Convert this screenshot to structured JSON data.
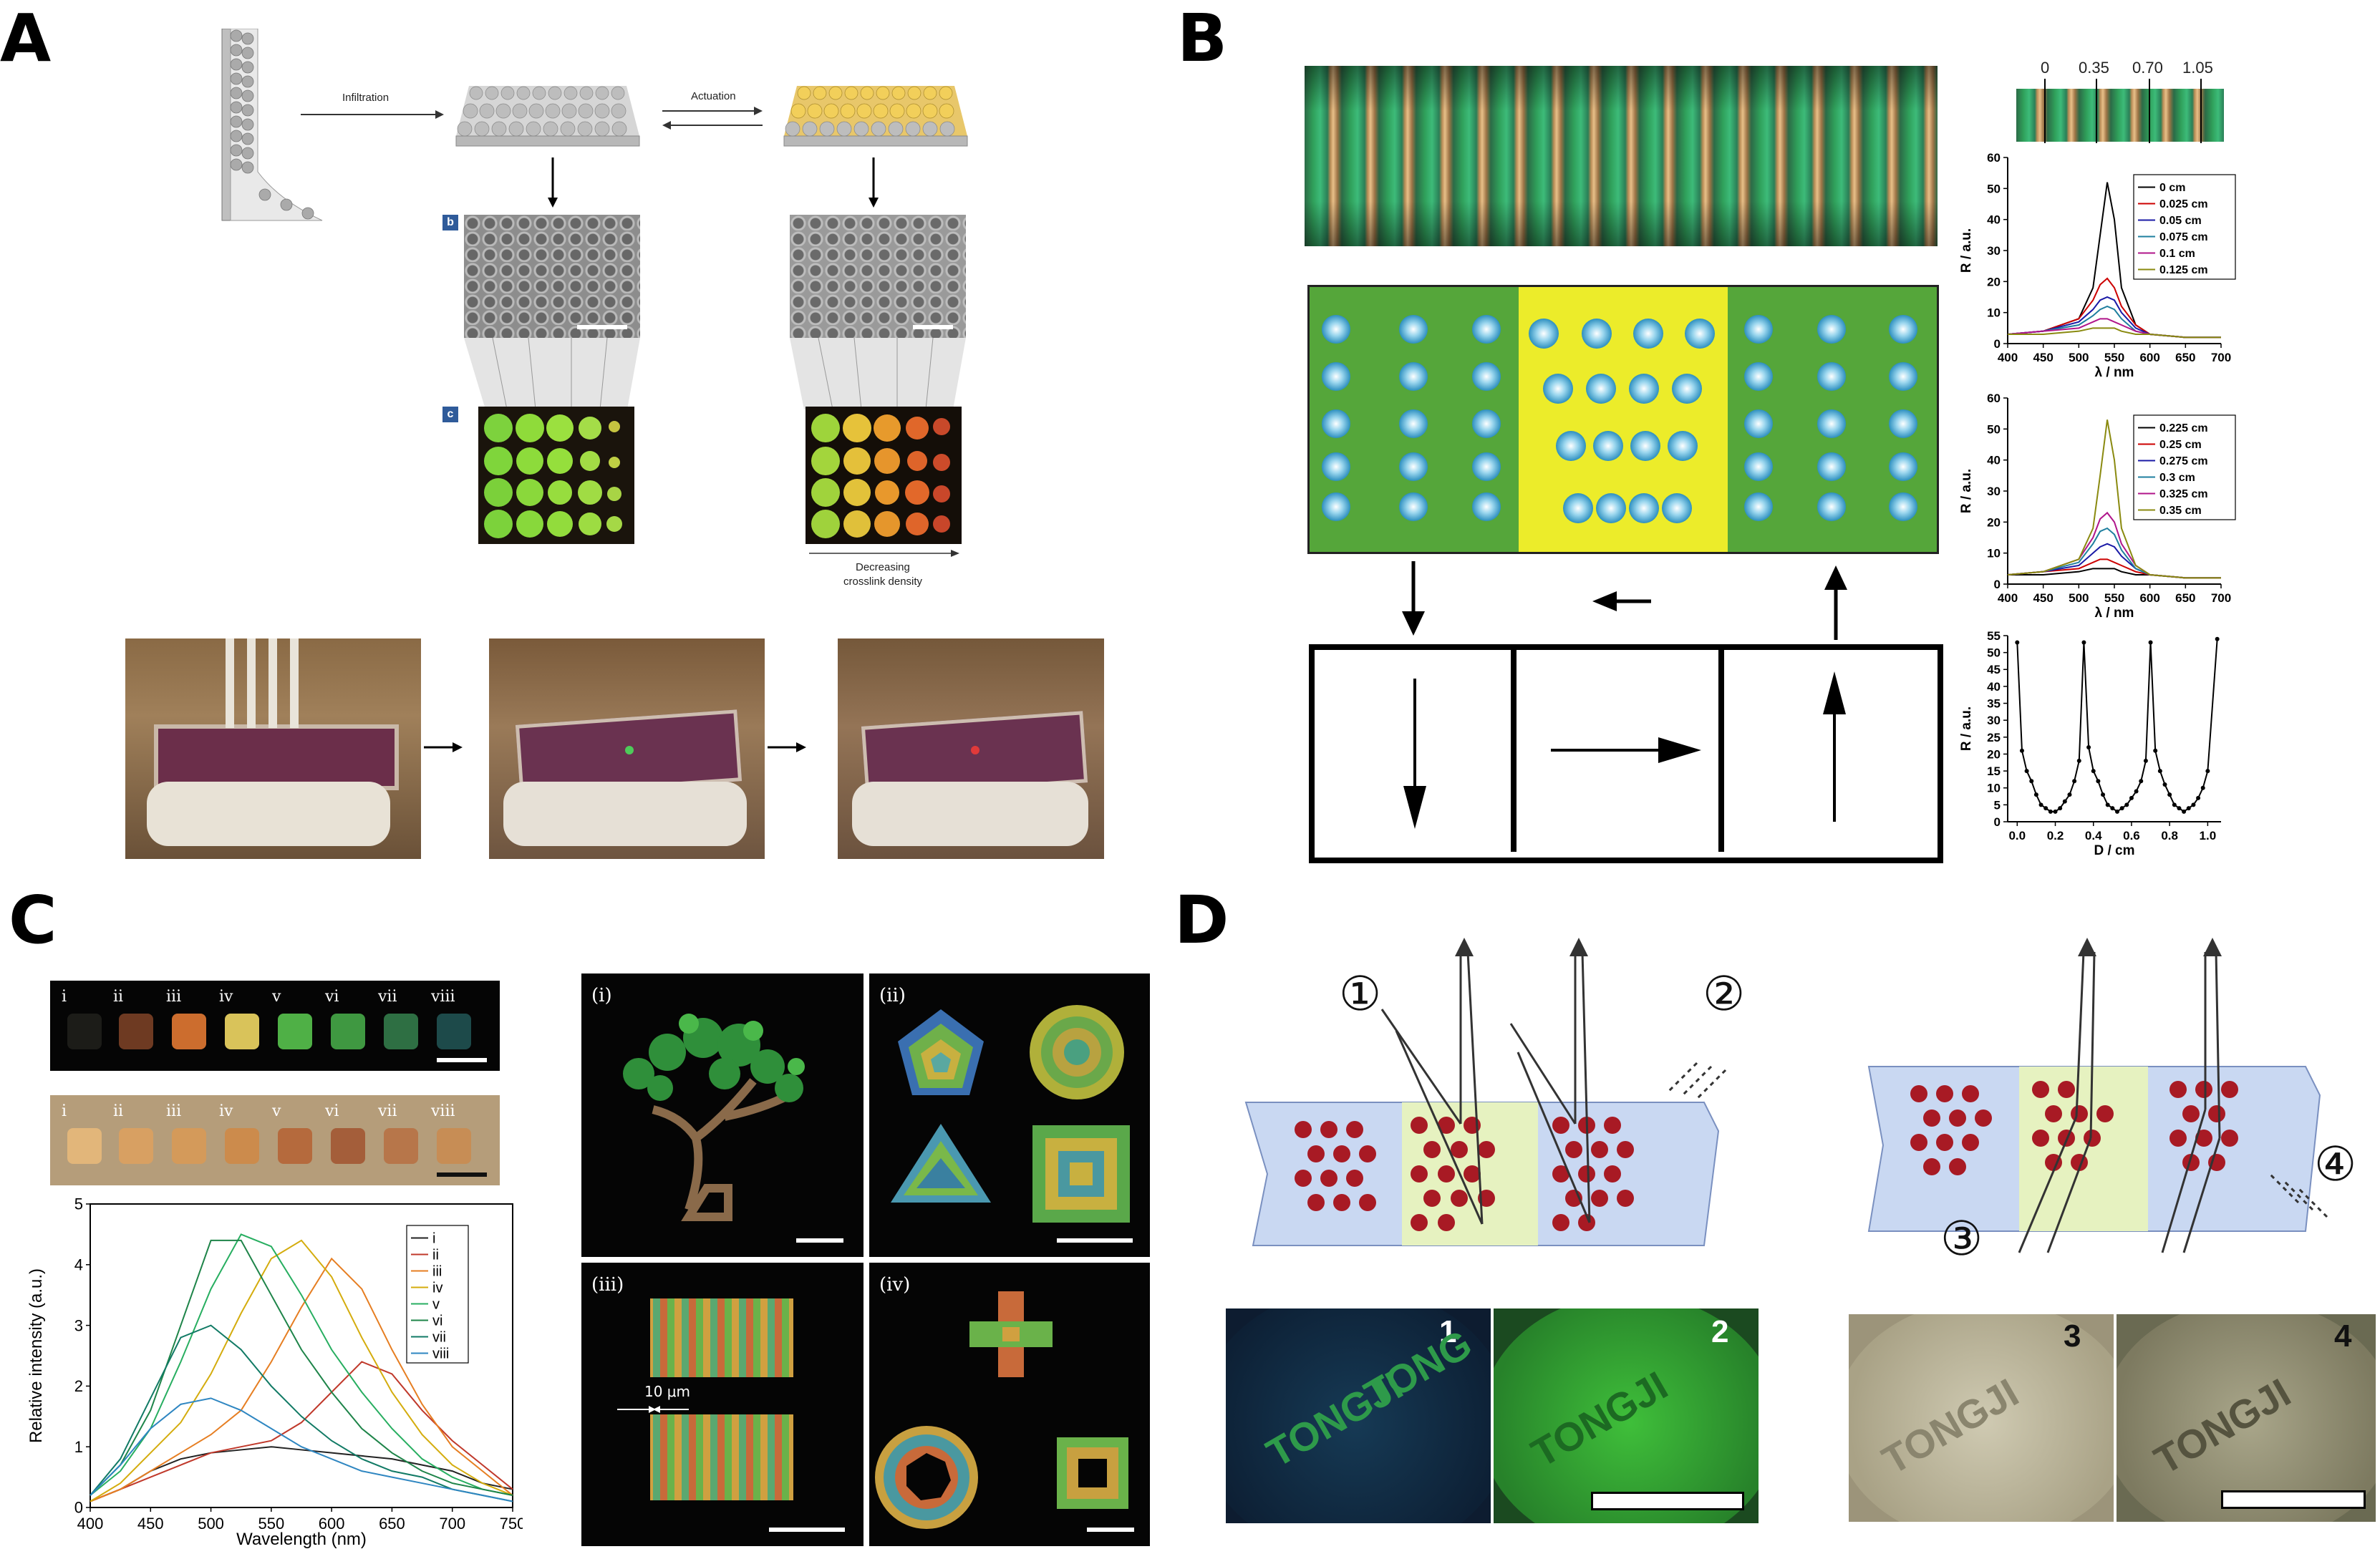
{
  "panels": {
    "a": "A",
    "b": "B",
    "c": "C",
    "d": "D"
  },
  "panelA": {
    "infiltration": "Infiltration",
    "actuation": "Actuation",
    "tag_b": "b",
    "tag_c": "c",
    "decreasing": "Decreasing",
    "crosslink": "crosslink density"
  },
  "panelB": {
    "top_ticks": [
      "0",
      "0.35",
      "0.70",
      "1.05"
    ],
    "xlabel": "λ / nm",
    "ylabel": "R / a.u.",
    "dlabel": "D / cm"
  },
  "panelC": {
    "row_labels": [
      "i",
      "ii",
      "iii",
      "iv",
      "v",
      "vi",
      "vii",
      "viii"
    ],
    "sub_labels": [
      "(i)",
      "(ii)",
      "(iii)",
      "(iv)"
    ],
    "ten_um": "10 μm"
  },
  "panelD": {
    "markers": [
      "①",
      "②",
      "③",
      "④"
    ],
    "photo_nums": [
      "1",
      "2",
      "3",
      "4"
    ],
    "watermark": [
      "TONGJI",
      "TONGJI",
      "TONGJI",
      "TONG",
      "TONGJI"
    ]
  },
  "chart_data": [
    {
      "type": "line",
      "xlabel": "λ / nm",
      "ylabel": "R / a.u.",
      "xlim": [
        400,
        700
      ],
      "ylim": [
        0,
        60
      ],
      "xticks": [
        400,
        450,
        500,
        550,
        600,
        650,
        700
      ],
      "yticks": [
        0,
        10,
        20,
        30,
        40,
        50,
        60
      ],
      "legend_position": "top-right",
      "x": [
        400,
        450,
        500,
        520,
        530,
        540,
        550,
        560,
        580,
        600,
        650,
        700
      ],
      "series": [
        {
          "name": "0 cm",
          "color": "#000000",
          "values": [
            3,
            4,
            8,
            18,
            35,
            52,
            40,
            18,
            6,
            3,
            2,
            2
          ]
        },
        {
          "name": "0.025 cm",
          "color": "#cc0000",
          "values": [
            3,
            4,
            8,
            14,
            19,
            21,
            18,
            12,
            6,
            3,
            2,
            2
          ]
        },
        {
          "name": "0.05 cm",
          "color": "#1a1aa6",
          "values": [
            3,
            4,
            7,
            11,
            14,
            15,
            14,
            10,
            5,
            3,
            2,
            2
          ]
        },
        {
          "name": "0.075 cm",
          "color": "#1f7f9f",
          "values": [
            3,
            4,
            6,
            9,
            11,
            12,
            11,
            8,
            4,
            3,
            2,
            2
          ]
        },
        {
          "name": "0.1 cm",
          "color": "#b0158a",
          "values": [
            3,
            4,
            5,
            7,
            8,
            8,
            7,
            6,
            4,
            3,
            2,
            2
          ]
        },
        {
          "name": "0.125 cm",
          "color": "#8a8a10",
          "values": [
            3,
            3,
            4,
            5,
            5,
            5,
            5,
            4,
            3,
            3,
            2,
            2
          ]
        }
      ]
    },
    {
      "type": "line",
      "xlabel": "λ / nm",
      "ylabel": "R / a.u.",
      "xlim": [
        400,
        700
      ],
      "ylim": [
        0,
        60
      ],
      "xticks": [
        400,
        450,
        500,
        550,
        600,
        650,
        700
      ],
      "yticks": [
        0,
        10,
        20,
        30,
        40,
        50,
        60
      ],
      "legend_position": "top-right",
      "x": [
        400,
        450,
        500,
        520,
        530,
        540,
        550,
        560,
        580,
        600,
        650,
        700
      ],
      "series": [
        {
          "name": "0.225 cm",
          "color": "#000000",
          "values": [
            3,
            3,
            4,
            5,
            5,
            5,
            5,
            4,
            3,
            3,
            2,
            2
          ]
        },
        {
          "name": "0.25 cm",
          "color": "#cc0000",
          "values": [
            3,
            4,
            5,
            7,
            8,
            8,
            7,
            6,
            4,
            3,
            2,
            2
          ]
        },
        {
          "name": "0.275 cm",
          "color": "#1a1aa6",
          "values": [
            3,
            4,
            6,
            10,
            12,
            13,
            12,
            9,
            5,
            3,
            2,
            2
          ]
        },
        {
          "name": "0.3 cm",
          "color": "#1f7f9f",
          "values": [
            3,
            4,
            7,
            13,
            17,
            18,
            16,
            11,
            5,
            3,
            2,
            2
          ]
        },
        {
          "name": "0.325 cm",
          "color": "#b0158a",
          "values": [
            3,
            4,
            8,
            15,
            21,
            23,
            20,
            13,
            6,
            3,
            2,
            2
          ]
        },
        {
          "name": "0.35 cm",
          "color": "#8a8a10",
          "values": [
            3,
            4,
            8,
            18,
            35,
            53,
            40,
            18,
            6,
            3,
            2,
            2
          ]
        }
      ]
    },
    {
      "type": "line",
      "xlabel": "D / cm",
      "ylabel": "R / a.u.",
      "xlim": [
        -0.05,
        1.07
      ],
      "ylim": [
        0,
        55
      ],
      "xticks": [
        "0.0",
        "0.2",
        "0.4",
        "0.6",
        "0.8",
        "1.0"
      ],
      "yticks": [
        0,
        5,
        10,
        15,
        20,
        25,
        30,
        35,
        40,
        45,
        50,
        55
      ],
      "series": [
        {
          "name": "",
          "color": "#000000",
          "x": [
            0,
            0.025,
            0.05,
            0.075,
            0.1,
            0.125,
            0.15,
            0.175,
            0.2,
            0.225,
            0.25,
            0.275,
            0.3,
            0.325,
            0.35,
            0.375,
            0.4,
            0.425,
            0.45,
            0.475,
            0.5,
            0.525,
            0.55,
            0.575,
            0.6,
            0.625,
            0.65,
            0.675,
            0.7,
            0.725,
            0.75,
            0.775,
            0.8,
            0.825,
            0.85,
            0.875,
            0.9,
            0.925,
            0.95,
            0.975,
            1.0,
            1.05
          ],
          "values": [
            53,
            21,
            15,
            12,
            8,
            5,
            4,
            3,
            3,
            4,
            6,
            8,
            12,
            18,
            53,
            22,
            15,
            12,
            8,
            5,
            4,
            3,
            4,
            5,
            7,
            9,
            12,
            18,
            53,
            21,
            15,
            11,
            8,
            5,
            4,
            3,
            4,
            5,
            7,
            10,
            15,
            54
          ]
        }
      ]
    },
    {
      "type": "line",
      "xlabel": "Wavelength (nm)",
      "ylabel": "Relative intensity (a.u.)",
      "xlim": [
        400,
        750
      ],
      "ylim": [
        0,
        5
      ],
      "xticks": [
        400,
        450,
        500,
        550,
        600,
        650,
        700,
        750
      ],
      "yticks": [
        0,
        1,
        2,
        3,
        4,
        5
      ],
      "legend_position": "top-right",
      "x": [
        400,
        425,
        450,
        475,
        500,
        525,
        550,
        575,
        600,
        625,
        650,
        675,
        700,
        725,
        750
      ],
      "series": [
        {
          "name": "i",
          "color": "#222222",
          "values": [
            0.1,
            0.3,
            0.6,
            0.8,
            0.9,
            0.95,
            1.0,
            0.95,
            0.9,
            0.85,
            0.8,
            0.7,
            0.6,
            0.4,
            0.3
          ]
        },
        {
          "name": "ii",
          "color": "#c0392b",
          "values": [
            0.1,
            0.3,
            0.5,
            0.7,
            0.9,
            1.0,
            1.1,
            1.4,
            1.9,
            2.4,
            2.2,
            1.6,
            1.1,
            0.7,
            0.3
          ]
        },
        {
          "name": "iii",
          "color": "#e67e22",
          "values": [
            0.1,
            0.3,
            0.6,
            0.9,
            1.2,
            1.6,
            2.4,
            3.3,
            4.1,
            3.6,
            2.6,
            1.7,
            1.0,
            0.6,
            0.2
          ]
        },
        {
          "name": "iv",
          "color": "#d4ac0d",
          "values": [
            0.1,
            0.4,
            0.9,
            1.4,
            2.2,
            3.2,
            4.1,
            4.4,
            3.8,
            2.8,
            1.9,
            1.2,
            0.7,
            0.4,
            0.2
          ]
        },
        {
          "name": "v",
          "color": "#27ae60",
          "values": [
            0.2,
            0.6,
            1.3,
            2.4,
            3.6,
            4.5,
            4.3,
            3.5,
            2.6,
            1.9,
            1.3,
            0.8,
            0.5,
            0.3,
            0.2
          ]
        },
        {
          "name": "vi",
          "color": "#1e8449",
          "values": [
            0.2,
            0.7,
            1.6,
            3.0,
            4.4,
            4.4,
            3.5,
            2.6,
            1.9,
            1.3,
            0.9,
            0.6,
            0.4,
            0.3,
            0.2
          ]
        },
        {
          "name": "vii",
          "color": "#117a65",
          "values": [
            0.2,
            0.8,
            1.8,
            2.8,
            3.0,
            2.6,
            2.0,
            1.5,
            1.1,
            0.8,
            0.6,
            0.5,
            0.3,
            0.2,
            0.1
          ]
        },
        {
          "name": "viii",
          "color": "#2e86c1",
          "values": [
            0.2,
            0.7,
            1.3,
            1.7,
            1.8,
            1.6,
            1.3,
            1.0,
            0.8,
            0.6,
            0.5,
            0.4,
            0.3,
            0.2,
            0.1
          ]
        }
      ]
    }
  ]
}
